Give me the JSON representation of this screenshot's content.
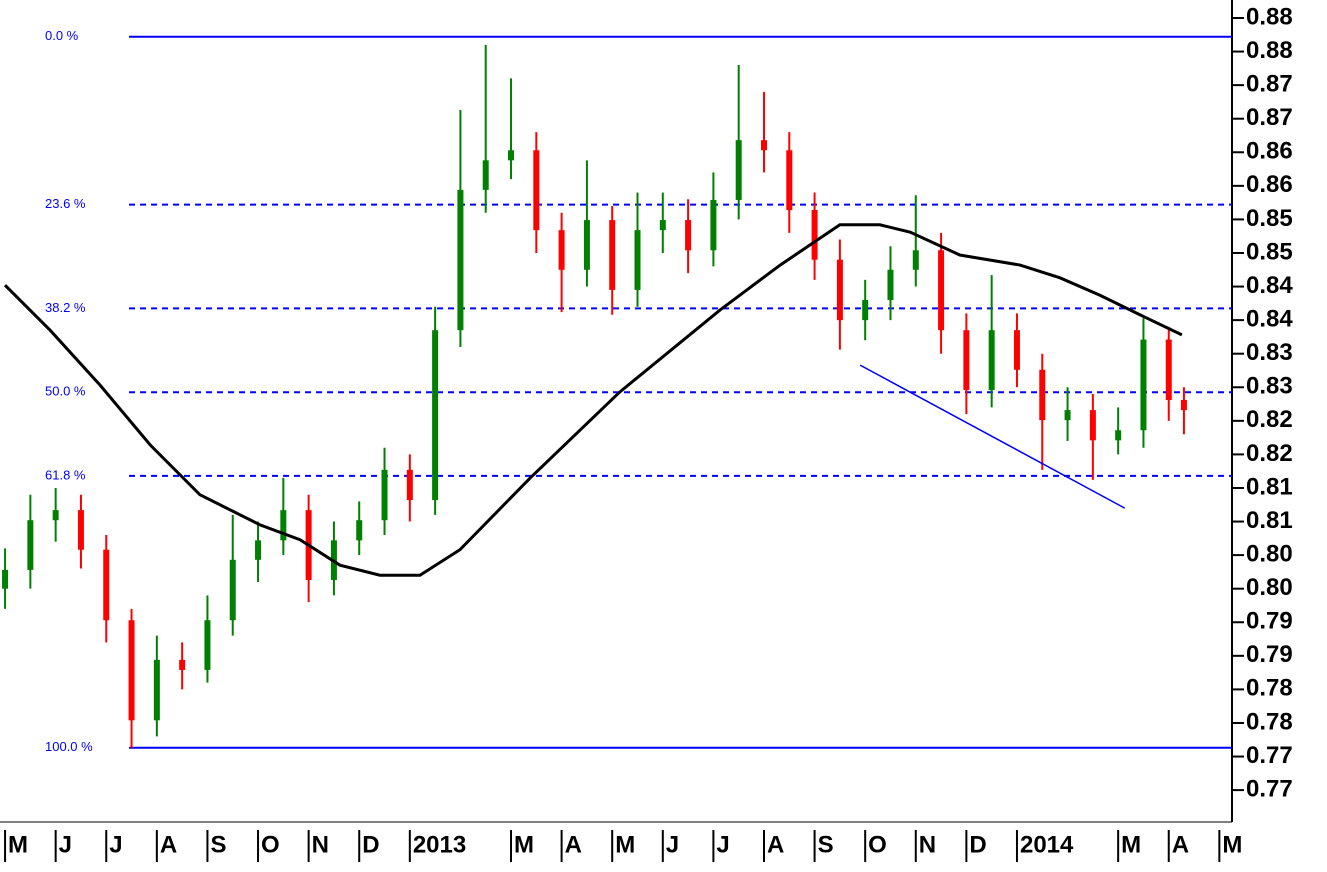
{
  "chart_data": {
    "type": "candlestick",
    "up_color": "#008000",
    "down_color": "#ff0000",
    "xlim": [
      -0.1,
      24.25
    ],
    "ylim": [
      0.76525,
      0.88768
    ],
    "xticks": [
      {
        "value": 0,
        "label": "M"
      },
      {
        "value": 1,
        "label": "J"
      },
      {
        "value": 2,
        "label": "J"
      },
      {
        "value": 3,
        "label": "A"
      },
      {
        "value": 4,
        "label": "S"
      },
      {
        "value": 5,
        "label": "O"
      },
      {
        "value": 6,
        "label": "N"
      },
      {
        "value": 7,
        "label": "D"
      },
      {
        "value": 8,
        "label": "2013"
      },
      {
        "value": 10,
        "label": "M"
      },
      {
        "value": 11,
        "label": "A"
      },
      {
        "value": 12,
        "label": "M"
      },
      {
        "value": 13,
        "label": "J"
      },
      {
        "value": 14,
        "label": "J"
      },
      {
        "value": 15,
        "label": "A"
      },
      {
        "value": 16,
        "label": "S"
      },
      {
        "value": 17,
        "label": "O"
      },
      {
        "value": 18,
        "label": "N"
      },
      {
        "value": 19,
        "label": "D"
      },
      {
        "value": 20,
        "label": "2014"
      },
      {
        "value": 22,
        "label": "M"
      },
      {
        "value": 23,
        "label": "A"
      },
      {
        "value": 24,
        "label": "M"
      }
    ],
    "yticks": [
      {
        "value": 0.885,
        "label": "0.88"
      },
      {
        "value": 0.88,
        "label": "0.88"
      },
      {
        "value": 0.875,
        "label": "0.87"
      },
      {
        "value": 0.87,
        "label": "0.87"
      },
      {
        "value": 0.865,
        "label": "0.86"
      },
      {
        "value": 0.86,
        "label": "0.86"
      },
      {
        "value": 0.855,
        "label": "0.85"
      },
      {
        "value": 0.85,
        "label": "0.85"
      },
      {
        "value": 0.845,
        "label": "0.84"
      },
      {
        "value": 0.84,
        "label": "0.84"
      },
      {
        "value": 0.835,
        "label": "0.83"
      },
      {
        "value": 0.83,
        "label": "0.83"
      },
      {
        "value": 0.825,
        "label": "0.82"
      },
      {
        "value": 0.82,
        "label": "0.82"
      },
      {
        "value": 0.815,
        "label": "0.81"
      },
      {
        "value": 0.81,
        "label": "0.81"
      },
      {
        "value": 0.805,
        "label": "0.80"
      },
      {
        "value": 0.8,
        "label": "0.80"
      },
      {
        "value": 0.795,
        "label": "0.79"
      },
      {
        "value": 0.79,
        "label": "0.79"
      },
      {
        "value": 0.785,
        "label": "0.78"
      },
      {
        "value": 0.78,
        "label": "0.78"
      },
      {
        "value": 0.775,
        "label": "0.77"
      },
      {
        "value": 0.77,
        "label": "0.77"
      }
    ],
    "x": [
      0,
      0.5,
      1,
      1.5,
      2,
      2.5,
      3,
      3.5,
      4,
      4.5,
      5,
      5.5,
      6,
      6.5,
      7,
      7.5,
      8,
      8.5,
      9,
      9.5,
      10,
      10.5,
      11,
      11.5,
      12,
      12.5,
      13,
      13.5,
      14,
      14.5,
      15,
      15.5,
      16,
      16.5,
      17,
      17.5,
      18,
      18.5,
      19,
      19.5,
      20,
      20.5,
      21,
      21.5,
      22,
      22.5,
      23,
      23.3
    ],
    "open": [
      0.8,
      0.8028,
      0.8102,
      0.8117,
      0.8058,
      0.7953,
      0.7804,
      0.7894,
      0.7879,
      0.7953,
      0.8043,
      0.8072,
      0.8117,
      0.8013,
      0.8072,
      0.8102,
      0.8177,
      0.8132,
      0.8385,
      0.8594,
      0.8638,
      0.8653,
      0.8534,
      0.8475,
      0.8549,
      0.8445,
      0.8534,
      0.8549,
      0.8504,
      0.8579,
      0.8668,
      0.8653,
      0.8564,
      0.849,
      0.84,
      0.843,
      0.8475,
      0.8504,
      0.8385,
      0.8296,
      0.8385,
      0.8326,
      0.8251,
      0.8266,
      0.8221,
      0.8236,
      0.8371,
      0.8281
    ],
    "high": [
      0.806,
      0.814,
      0.815,
      0.814,
      0.808,
      0.797,
      0.793,
      0.792,
      0.799,
      0.811,
      0.81,
      0.8165,
      0.814,
      0.81,
      0.813,
      0.821,
      0.82,
      0.842,
      0.8713,
      0.881,
      0.876,
      0.868,
      0.856,
      0.8638,
      0.857,
      0.859,
      0.859,
      0.858,
      0.862,
      0.878,
      0.874,
      0.868,
      0.859,
      0.852,
      0.846,
      0.851,
      0.8586,
      0.853,
      0.841,
      0.8467,
      0.841,
      0.835,
      0.83,
      0.829,
      0.827,
      0.8403,
      0.839,
      0.83
    ],
    "low": [
      0.797,
      0.8,
      0.807,
      0.803,
      0.792,
      0.7763,
      0.778,
      0.785,
      0.786,
      0.793,
      0.801,
      0.805,
      0.798,
      0.799,
      0.805,
      0.808,
      0.81,
      0.811,
      0.836,
      0.856,
      0.861,
      0.85,
      0.8412,
      0.845,
      0.8408,
      0.842,
      0.85,
      0.847,
      0.848,
      0.855,
      0.862,
      0.853,
      0.846,
      0.8356,
      0.837,
      0.84,
      0.845,
      0.835,
      0.826,
      0.827,
      0.83,
      0.8177,
      0.822,
      0.8162,
      0.82,
      0.821,
      0.825,
      0.823
    ],
    "close": [
      0.8028,
      0.8102,
      0.8117,
      0.8058,
      0.7953,
      0.7804,
      0.7894,
      0.7879,
      0.7953,
      0.8043,
      0.8072,
      0.8117,
      0.8013,
      0.8072,
      0.8102,
      0.8177,
      0.8132,
      0.8385,
      0.8594,
      0.8638,
      0.8653,
      0.8534,
      0.8475,
      0.8549,
      0.8445,
      0.8534,
      0.8549,
      0.8504,
      0.8579,
      0.8668,
      0.8653,
      0.8564,
      0.849,
      0.84,
      0.843,
      0.8475,
      0.8504,
      0.8385,
      0.8296,
      0.8385,
      0.8326,
      0.8251,
      0.8266,
      0.8221,
      0.8236,
      0.8371,
      0.8281,
      0.8266
    ],
    "moving_average": {
      "color": "#000000",
      "x": [
        0,
        0.89,
        1.88,
        2.87,
        3.85,
        5.04,
        5.83,
        6.62,
        7.41,
        8.2,
        8.99,
        10.38,
        12.15,
        14.13,
        15.32,
        16.5,
        17.29,
        17.89,
        18.87,
        20.06,
        20.85,
        21.64,
        22.43,
        23.26
      ],
      "values": [
        0.8452,
        0.8385,
        0.8303,
        0.8214,
        0.814,
        0.8095,
        0.8073,
        0.8035,
        0.802,
        0.802,
        0.8058,
        0.8165,
        0.8293,
        0.8415,
        0.8482,
        0.8542,
        0.8542,
        0.8531,
        0.8497,
        0.8482,
        0.8463,
        0.8437,
        0.8408,
        0.8378
      ]
    },
    "trendline": {
      "color": "#0000ff",
      "x": [
        16.9,
        22.13
      ],
      "values": [
        0.8333,
        0.812
      ]
    },
    "fibonacci": {
      "color": "#0000ff",
      "x_start": 2.45,
      "levels": [
        {
          "label": "0.0 %",
          "value": 0.8822,
          "style": "solid"
        },
        {
          "label": "23.6 %",
          "value": 0.8572,
          "style": "dashed"
        },
        {
          "label": "38.2 %",
          "value": 0.84175,
          "style": "dashed"
        },
        {
          "label": "50.0 %",
          "value": 0.82925,
          "style": "dashed"
        },
        {
          "label": "61.8 %",
          "value": 0.8168,
          "style": "dashed"
        },
        {
          "label": "100.0 %",
          "value": 0.7763,
          "style": "solid"
        }
      ]
    }
  }
}
